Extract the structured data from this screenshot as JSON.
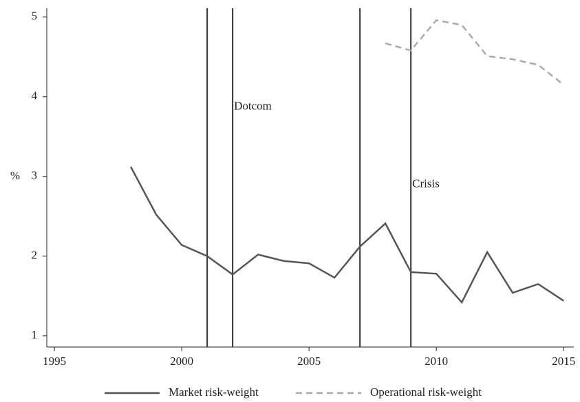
{
  "chart_data": {
    "type": "line",
    "ylabel": "%",
    "x": [
      1998,
      1999,
      2000,
      2001,
      2002,
      2003,
      2004,
      2005,
      2006,
      2007,
      2008,
      2009,
      2010,
      2011,
      2012,
      2013,
      2014,
      2015
    ],
    "series": [
      {
        "name": "Market risk-weight",
        "color": "#555555",
        "dash": "none",
        "values": [
          3.12,
          2.52,
          2.14,
          2.0,
          1.77,
          2.02,
          1.94,
          1.91,
          1.73,
          2.12,
          2.41,
          1.8,
          1.78,
          1.42,
          2.05,
          1.54,
          1.65,
          1.44
        ]
      },
      {
        "name": "Operational risk-weight",
        "color": "#aaaaaa",
        "dash": "9 6",
        "values": [
          null,
          null,
          null,
          null,
          null,
          null,
          null,
          null,
          null,
          null,
          4.67,
          4.58,
          4.96,
          4.9,
          4.51,
          4.47,
          4.4,
          4.15
        ]
      }
    ],
    "vlines": [
      2001,
      2002,
      2007,
      2009
    ],
    "annotations": [
      {
        "text": "Dotcom",
        "x": 2002,
        "y": 3.87
      },
      {
        "text": "Crisis",
        "x": 2009,
        "y": 2.9
      }
    ],
    "xlim": [
      1994.7,
      2015.4
    ],
    "xticks": [
      1995,
      2000,
      2005,
      2010,
      2015
    ],
    "ylim": [
      0.86,
      5.11
    ],
    "yticks": [
      1,
      2,
      3,
      4,
      5
    ],
    "grid": false,
    "legend": "bottom"
  }
}
